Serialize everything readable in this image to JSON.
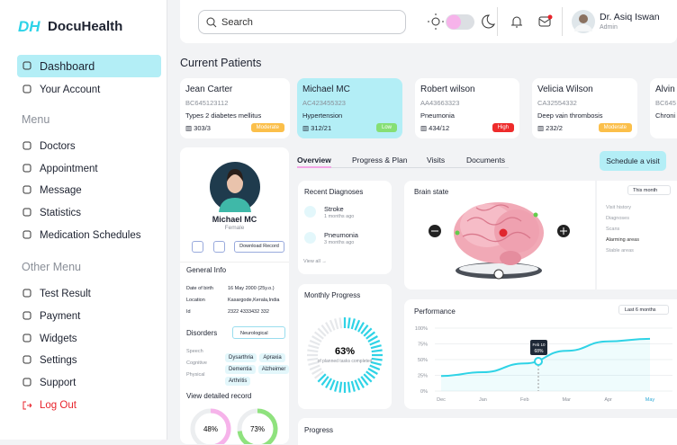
{
  "sidebar": {
    "logo_mark": "DH",
    "logo_text": "DocuHealth",
    "top_nav": [
      "Dashboard",
      "Your Account"
    ],
    "menu_title": "Menu",
    "menu": [
      "Doctors",
      "Appointment",
      "Message",
      "Statistics",
      "Medication Schedules"
    ],
    "other_title": "Other Menu",
    "other_menu": [
      "Test Result",
      "Payment",
      "Widgets",
      "Settings",
      "Support"
    ],
    "logout": "Log Out"
  },
  "header": {
    "search_placeholder": "Search",
    "user_name": "Dr. Asiq Iswan",
    "user_role": "Admin"
  },
  "patients": {
    "title": "Current Patients",
    "cards": [
      {
        "name": "Jean Carter",
        "id": "BC645123112",
        "condition": "Types 2 diabetes mellitus",
        "room": "303/3",
        "severity": "Moderate",
        "badge_color": "#fbbf4a"
      },
      {
        "name": "Michael MC",
        "id": "AC423455323",
        "condition": "Hypertension",
        "room": "312/21",
        "severity": "Low",
        "badge_color": "#86df74"
      },
      {
        "name": "Robert wilson",
        "id": "AA43663323",
        "condition": "Pneumonia",
        "room": "434/12",
        "severity": "High",
        "badge_color": "#ee2b2b"
      },
      {
        "name": "Velicia Wilson",
        "id": "CA32554332",
        "condition": "Deep vain thrombosis",
        "room": "232/2",
        "severity": "Moderate",
        "badge_color": "#fbbf4a"
      },
      {
        "name": "Alvin",
        "id": "BC645",
        "condition": "Chroni"
      }
    ]
  },
  "profile": {
    "name": "Michael MC",
    "gender": "Female",
    "download": "Download Record",
    "general_title": "General Info",
    "info": [
      [
        "Date of birth",
        "16 May 2000 (25y.o.)"
      ],
      [
        "Location",
        "Kasargode,Kerala,India"
      ],
      [
        "Id",
        "2322 4333432 332"
      ]
    ],
    "disorders_title": "Disorders",
    "disorders_filter": "Neurological",
    "disorders": [
      {
        "label": "Speech",
        "tags": [
          "Dysarthria",
          "Apraxia"
        ]
      },
      {
        "label": "Cognitive",
        "tags": [
          "Dementia",
          "Alzheimer"
        ]
      },
      {
        "label": "Physical",
        "tags": [
          "Arthritis"
        ]
      }
    ],
    "record_title": "View detailed record",
    "record_rings": [
      {
        "value": 48,
        "label": "48%",
        "color": "#f6b3ea"
      },
      {
        "value": 73,
        "label": "73%",
        "color": "#8fe27e"
      }
    ]
  },
  "tabs": {
    "items": [
      "Overview",
      "Progress & Plan",
      "Visits",
      "Documents"
    ],
    "action": "Schedule a visit"
  },
  "diagnoses": {
    "title": "Recent Diagnoses",
    "items": [
      {
        "name": "Stroke",
        "time": "1 months ago"
      },
      {
        "name": "Pneumonia",
        "time": "3 months ago"
      }
    ],
    "link": "View all"
  },
  "monthly_progress": {
    "title": "Monthly Progress",
    "value": 63,
    "label": "63%",
    "caption": "of planned tasks completed"
  },
  "brain": {
    "title": "Brain state",
    "filter": "This month",
    "legend": [
      "Visit history",
      "Diagnoses",
      "Scans",
      "Alarming areas",
      "Stable areas"
    ]
  },
  "performance": {
    "title": "Performance",
    "filter": "Last 6 months",
    "categories": [
      "Dec",
      "Jan",
      "Feb",
      "Mar",
      "Apr",
      "May"
    ],
    "values": [
      24,
      30,
      44,
      64,
      79,
      83
    ],
    "color": "#2fd3e6",
    "ylim": [
      0,
      100
    ],
    "yticks": [
      {
        "value": 0,
        "label": "0%"
      },
      {
        "value": 25,
        "label": "25%"
      },
      {
        "value": 50,
        "label": "50%"
      },
      {
        "value": 75,
        "label": "75%"
      },
      {
        "value": 100,
        "label": "100%"
      }
    ],
    "tooltip": {
      "date": "Feb 10",
      "value": "68%"
    }
  },
  "progress": {
    "title": "Progress"
  }
}
